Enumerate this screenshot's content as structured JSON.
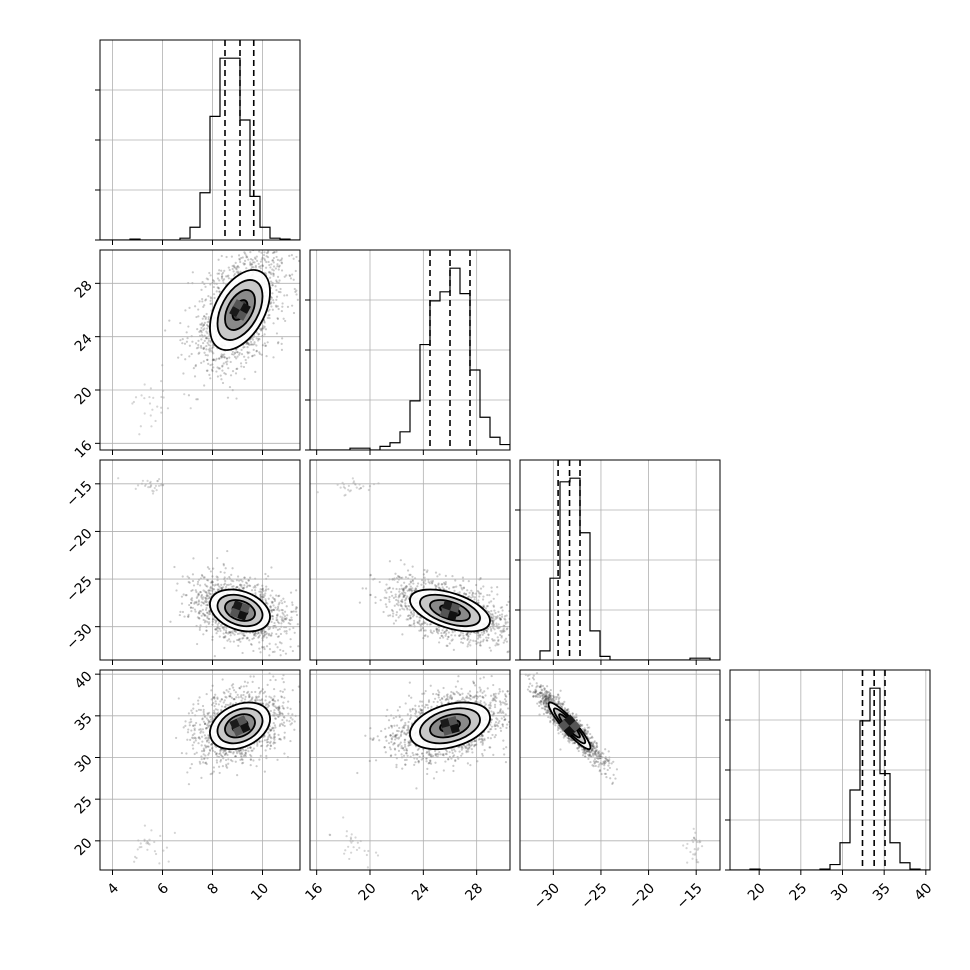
{
  "chart_data": {
    "type": "corner",
    "title": "",
    "parameters": [
      {
        "range": [
          3.5,
          11.5
        ],
        "ticks": [
          4,
          6,
          8,
          10
        ],
        "tick_labels": [
          "4",
          "6",
          "8",
          "10"
        ],
        "quantiles": [
          8.5,
          9.1,
          9.65
        ],
        "mode": 9.1,
        "sigma": 0.6,
        "hist_edges": [
          3.5,
          3.9,
          4.3,
          4.7,
          5.1,
          5.5,
          5.9,
          6.3,
          6.7,
          7.1,
          7.5,
          7.9,
          8.3,
          8.7,
          9.1,
          9.5,
          9.9,
          10.3,
          10.7,
          11.1,
          11.5
        ],
        "hist_counts": [
          0,
          0,
          0,
          0.005,
          0,
          0,
          0,
          0,
          0.01,
          0.07,
          0.26,
          0.68,
          1.0,
          1.0,
          0.66,
          0.24,
          0.07,
          0.01,
          0.005,
          0
        ]
      },
      {
        "range": [
          15.5,
          30.5
        ],
        "ticks": [
          16,
          20,
          24,
          28
        ],
        "tick_labels": [
          "16",
          "20",
          "24",
          "28"
        ],
        "quantiles": [
          24.5,
          26.0,
          27.5
        ],
        "mode": 26.0,
        "sigma": 1.5,
        "hist_edges": [
          15.5,
          16.25,
          17.0,
          17.75,
          18.5,
          19.25,
          20.0,
          20.75,
          21.5,
          22.25,
          23.0,
          23.75,
          24.5,
          25.25,
          26.0,
          26.75,
          27.5,
          28.25,
          29.0,
          29.75,
          30.5
        ],
        "hist_counts": [
          0,
          0,
          0,
          0,
          0.01,
          0.01,
          0,
          0.02,
          0.04,
          0.1,
          0.27,
          0.58,
          0.82,
          0.87,
          1.0,
          0.86,
          0.44,
          0.18,
          0.07,
          0.03
        ]
      },
      {
        "range": [
          -33.5,
          -12.5
        ],
        "ticks": [
          -30,
          -25,
          -20,
          -15
        ],
        "tick_labels": [
          "−30",
          "−25",
          "−20",
          "−15"
        ],
        "quantiles": [
          -29.5,
          -28.3,
          -27.2
        ],
        "mode": -28.3,
        "sigma": 1.1,
        "hist_edges": [
          -33.5,
          -32.45,
          -31.4,
          -30.35,
          -29.3,
          -28.25,
          -27.2,
          -26.15,
          -25.1,
          -24.05,
          -23.0,
          -21.95,
          -20.9,
          -19.85,
          -18.8,
          -17.75,
          -16.7,
          -15.65,
          -14.6,
          -13.55,
          -12.5
        ],
        "hist_counts": [
          0,
          0,
          0.05,
          0.45,
          0.98,
          1.0,
          0.7,
          0.16,
          0.02,
          0,
          0,
          0,
          0,
          0,
          0,
          0,
          0,
          0.01,
          0.01,
          0
        ]
      },
      {
        "range": [
          16.5,
          40.5
        ],
        "ticks": [
          20,
          25,
          30,
          35,
          40
        ],
        "tick_labels": [
          "20",
          "25",
          "30",
          "35",
          "40"
        ],
        "quantiles": [
          32.4,
          33.8,
          35.1
        ],
        "mode": 33.8,
        "sigma": 1.4,
        "hist_edges": [
          16.5,
          17.7,
          18.9,
          20.1,
          21.3,
          22.5,
          23.7,
          24.9,
          26.1,
          27.3,
          28.5,
          29.7,
          30.9,
          32.1,
          33.3,
          34.5,
          35.7,
          36.9,
          38.1,
          39.3,
          40.5
        ],
        "hist_counts": [
          0,
          0,
          0.005,
          0,
          0,
          0,
          0,
          0,
          0,
          0.005,
          0.03,
          0.15,
          0.44,
          0.82,
          1.0,
          0.53,
          0.15,
          0.04,
          0.005,
          0
        ]
      }
    ],
    "correlations": {
      "0-1": 0.45,
      "0-2": -0.3,
      "1-2": -0.5,
      "0-3": 0.3,
      "1-3": 0.35,
      "2-3": -0.92
    },
    "outlier_cluster": {
      "center": [
        5.5,
        18.8,
        -15.2,
        19.5
      ],
      "spread": [
        0.7,
        1.0,
        0.5,
        1.3
      ]
    },
    "contour_levels": [
      "0.5-sigma",
      "1-sigma",
      "1.5-sigma",
      "2-sigma"
    ],
    "grid": true,
    "colors": {
      "ink": "#000000",
      "grid": "#b0b0b0",
      "scatter": "#404040"
    }
  }
}
